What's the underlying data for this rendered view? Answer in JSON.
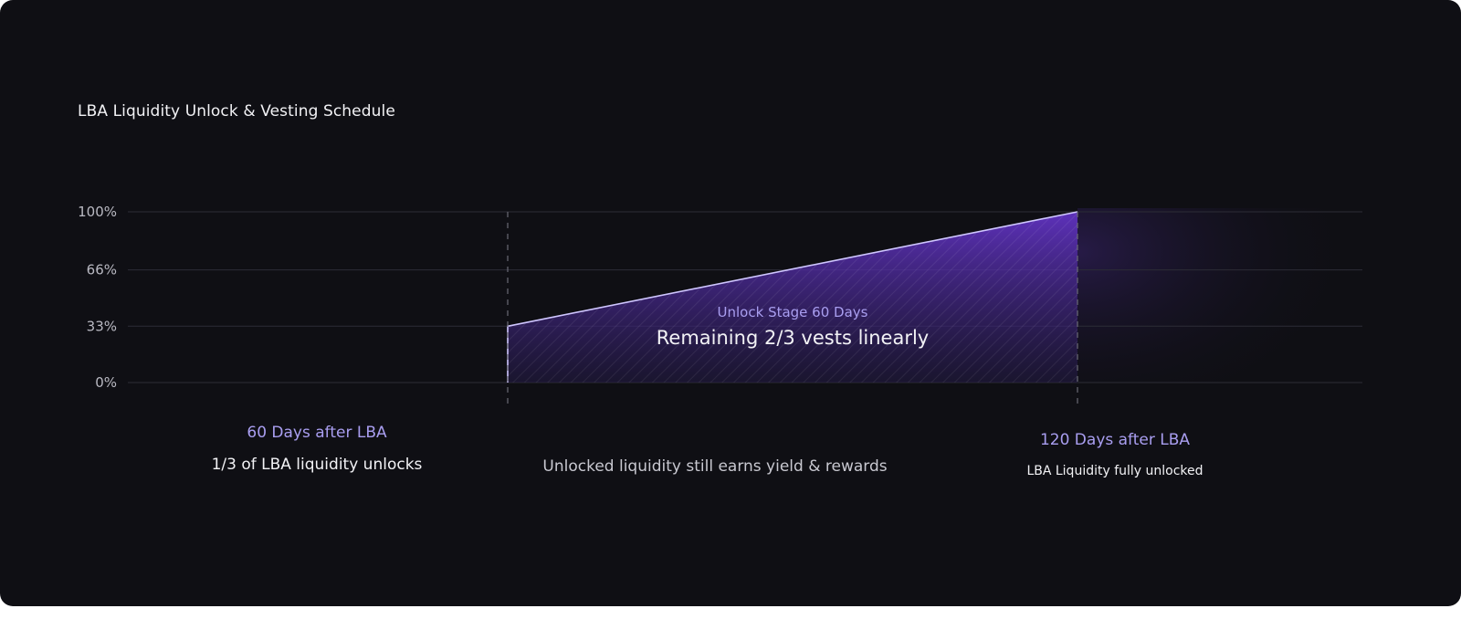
{
  "colors": {
    "background": "#0f0f14",
    "accent": "#a99ef0",
    "accent_line": "#cfc6ff",
    "fill": "#5a2fc0",
    "grid": "#2c2c36",
    "text": "#f2f2f5",
    "muted": "#b9b9c2"
  },
  "chart_data": {
    "type": "area",
    "title": "LBA Liquidity Unlock & Vesting Schedule",
    "y_ticks": [
      "0%",
      "33%",
      "66%",
      "100%"
    ],
    "y_tick_values": [
      0,
      33,
      66,
      100
    ],
    "ylim": [
      0,
      100
    ],
    "xlim": [
      20,
      150
    ],
    "xlabel": "",
    "ylabel": "",
    "grid": true,
    "series": [
      {
        "x": [
          60,
          60,
          120
        ],
        "y": [
          0,
          33,
          100
        ]
      }
    ],
    "markers": [
      {
        "x": 60,
        "heading": "60 Days after LBA",
        "label": "1/3 of LBA liquidity unlocks"
      },
      {
        "x": 120,
        "heading": "120 Days after LBA",
        "label": "LBA Liquidity fully unlocked"
      }
    ],
    "annotations": {
      "stage_heading": "Unlock Stage 60 Days",
      "stage_label": "Remaining 2/3 vests linearly",
      "footnote": "Unlocked liquidity still earns yield & rewards"
    }
  }
}
